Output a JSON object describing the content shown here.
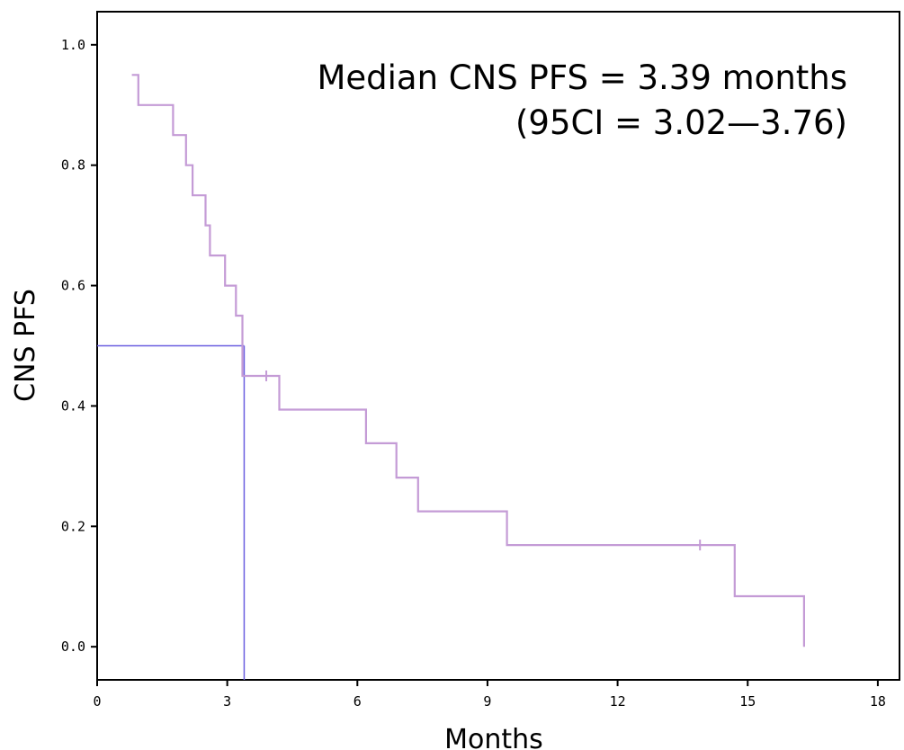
{
  "chart_data": {
    "type": "line",
    "subtype": "kaplan-meier-step",
    "xlabel": "Months",
    "ylabel": "CNS PFS",
    "xlim": [
      0,
      18.5
    ],
    "ylim": [
      -0.055,
      1.055
    ],
    "x_ticks": [
      0,
      3,
      6,
      9,
      12,
      15,
      18
    ],
    "x_tick_labels": [
      "0",
      "3",
      "6",
      "9",
      "12",
      "15",
      "18"
    ],
    "y_ticks": [
      0.0,
      0.2,
      0.4,
      0.6,
      0.8,
      1.0
    ],
    "y_tick_labels": [
      "0.0",
      "0.2",
      "0.4",
      "0.6",
      "0.8",
      "1.0"
    ],
    "grid": false,
    "annotations": [
      "Median CNS PFS = 3.39 months",
      "(95CI = 3.02—3.76)"
    ],
    "series": [
      {
        "color": "#c49bd6",
        "points": [
          [
            0.8,
            0.95
          ],
          [
            0.95,
            0.95
          ],
          [
            0.95,
            0.9
          ],
          [
            1.75,
            0.9
          ],
          [
            1.75,
            0.85
          ],
          [
            2.05,
            0.85
          ],
          [
            2.05,
            0.8
          ],
          [
            2.2,
            0.8
          ],
          [
            2.2,
            0.75
          ],
          [
            2.5,
            0.75
          ],
          [
            2.5,
            0.7
          ],
          [
            2.6,
            0.7
          ],
          [
            2.6,
            0.65
          ],
          [
            2.95,
            0.65
          ],
          [
            2.95,
            0.6
          ],
          [
            3.2,
            0.6
          ],
          [
            3.2,
            0.55
          ],
          [
            3.35,
            0.55
          ],
          [
            3.35,
            0.45
          ],
          [
            4.2,
            0.45
          ],
          [
            4.2,
            0.394
          ],
          [
            6.2,
            0.394
          ],
          [
            6.2,
            0.338
          ],
          [
            6.9,
            0.338
          ],
          [
            6.9,
            0.281
          ],
          [
            7.4,
            0.281
          ],
          [
            7.4,
            0.225
          ],
          [
            9.45,
            0.225
          ],
          [
            9.45,
            0.169
          ],
          [
            14.7,
            0.169
          ],
          [
            14.7,
            0.084
          ],
          [
            16.3,
            0.084
          ],
          [
            16.3,
            0.0
          ]
        ],
        "censored": [
          [
            3.9,
            0.45
          ],
          [
            13.9,
            0.169
          ]
        ]
      }
    ],
    "median_reference": {
      "x": 3.39,
      "y": 0.5,
      "color": "#6a5ee0"
    }
  }
}
